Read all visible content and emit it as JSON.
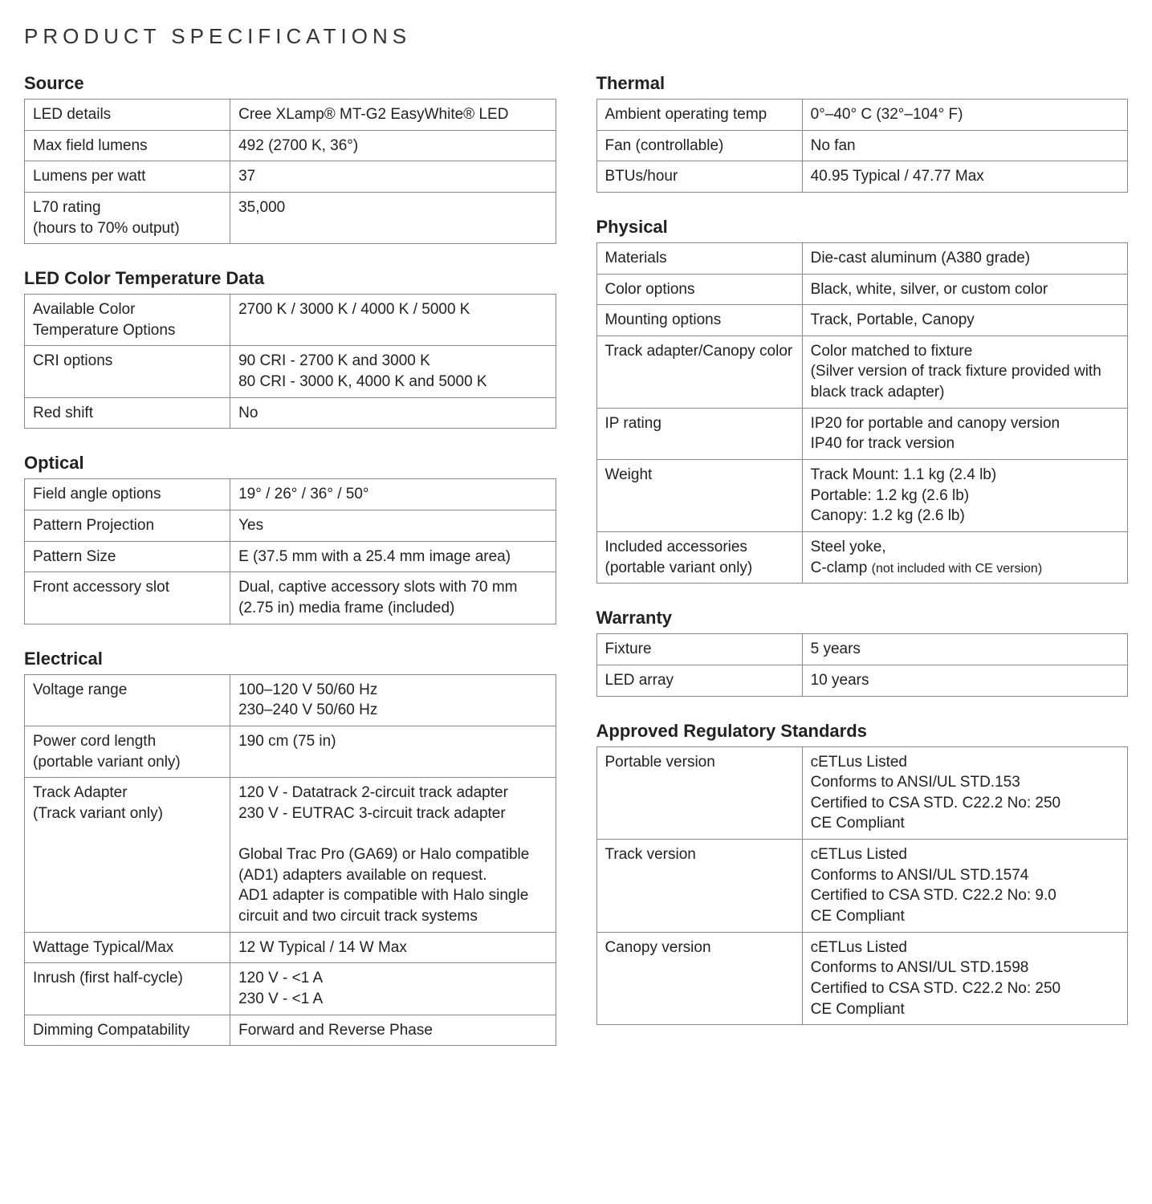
{
  "page_title": "PRODUCT SPECIFICATIONS",
  "colors": {
    "text": "#222222",
    "border": "#888888",
    "background": "#ffffff"
  },
  "left_sections": [
    {
      "heading": "Source",
      "rows": [
        {
          "label": "LED details",
          "value": "Cree XLamp® MT-G2 EasyWhite® LED"
        },
        {
          "label": "Max field lumens",
          "value": "492 (2700 K, 36°)"
        },
        {
          "label": "Lumens per watt",
          "value": "37"
        },
        {
          "label": "L70 rating\n(hours to 70% output)",
          "value": "35,000"
        }
      ]
    },
    {
      "heading": "LED Color Temperature Data",
      "rows": [
        {
          "label": "Available Color\nTemperature Options",
          "value": "2700 K / 3000 K / 4000 K / 5000 K"
        },
        {
          "label": "CRI options",
          "value": "90 CRI - 2700 K and 3000 K\n80 CRI - 3000 K, 4000 K and 5000 K"
        },
        {
          "label": "Red shift",
          "value": "No"
        }
      ]
    },
    {
      "heading": "Optical",
      "rows": [
        {
          "label": "Field angle options",
          "value": "19° / 26° / 36° / 50°"
        },
        {
          "label": "Pattern Projection",
          "value": "Yes"
        },
        {
          "label": "Pattern Size",
          "value": "E (37.5 mm with a 25.4 mm image area)"
        },
        {
          "label": "Front accessory slot",
          "value": "Dual, captive accessory slots with 70 mm (2.75 in) media frame (included)"
        }
      ]
    },
    {
      "heading": "Electrical",
      "rows": [
        {
          "label": "Voltage range",
          "value": "100–120 V 50/60 Hz\n230–240 V 50/60 Hz"
        },
        {
          "label": "Power cord length\n(portable variant only)",
          "value": "190 cm (75 in)"
        },
        {
          "label": "Track Adapter\n(Track variant only)",
          "value": "120 V - Datatrack 2-circuit track adapter\n230 V - EUTRAC 3-circuit track adapter\n\nGlobal Trac Pro (GA69) or Halo compatible (AD1) adapters available on request.\nAD1 adapter is compatible with Halo single circuit and two circuit track systems"
        },
        {
          "label": "Wattage Typical/Max",
          "value": "12 W Typical / 14 W Max"
        },
        {
          "label": "Inrush (first half-cycle)",
          "value": "120 V - <1 A\n230 V - <1 A"
        },
        {
          "label": "Dimming Compatability",
          "value": "Forward and Reverse Phase"
        }
      ]
    }
  ],
  "right_sections": [
    {
      "heading": "Thermal",
      "rows": [
        {
          "label": "Ambient operating temp",
          "value": "0°–40° C (32°–104° F)"
        },
        {
          "label": "Fan (controllable)",
          "value": "No fan"
        },
        {
          "label": "BTUs/hour",
          "value": "40.95 Typical / 47.77 Max"
        }
      ]
    },
    {
      "heading": "Physical",
      "rows": [
        {
          "label": "Materials",
          "value": "Die-cast aluminum (A380 grade)"
        },
        {
          "label": "Color options",
          "value": "Black, white, silver, or custom color"
        },
        {
          "label": "Mounting options",
          "value": "Track, Portable, Canopy"
        },
        {
          "label": "Track adapter/Canopy color",
          "value": "Color matched to fixture\n(Silver version of track fixture provided with black track adapter)"
        },
        {
          "label": "IP rating",
          "value": "IP20 for portable and canopy version\nIP40 for track version"
        },
        {
          "label": "Weight",
          "value": "Track Mount: 1.1 kg (2.4 lb)\nPortable: 1.2 kg (2.6 lb)\nCanopy: 1.2 kg (2.6 lb)"
        },
        {
          "label": "Included accessories\n(portable variant only)",
          "value": "Steel yoke,\nC-clamp |||(not included with CE version)"
        }
      ]
    },
    {
      "heading": "Warranty",
      "rows": [
        {
          "label": "Fixture",
          "value": "5 years"
        },
        {
          "label": "LED array",
          "value": "10 years"
        }
      ]
    },
    {
      "heading": "Approved Regulatory Standards",
      "rows": [
        {
          "label": "Portable version",
          "value": "cETLus Listed\nConforms to ANSI/UL STD.153\nCertified to CSA STD. C22.2 No: 250\nCE Compliant"
        },
        {
          "label": "Track version",
          "value": "cETLus Listed\nConforms to ANSI/UL STD.1574\nCertified to CSA STD. C22.2 No: 9.0\nCE Compliant"
        },
        {
          "label": "Canopy version",
          "value": "cETLus Listed\nConforms to ANSI/UL STD.1598\nCertified to CSA STD. C22.2 No: 250\nCE Compliant"
        }
      ]
    }
  ]
}
